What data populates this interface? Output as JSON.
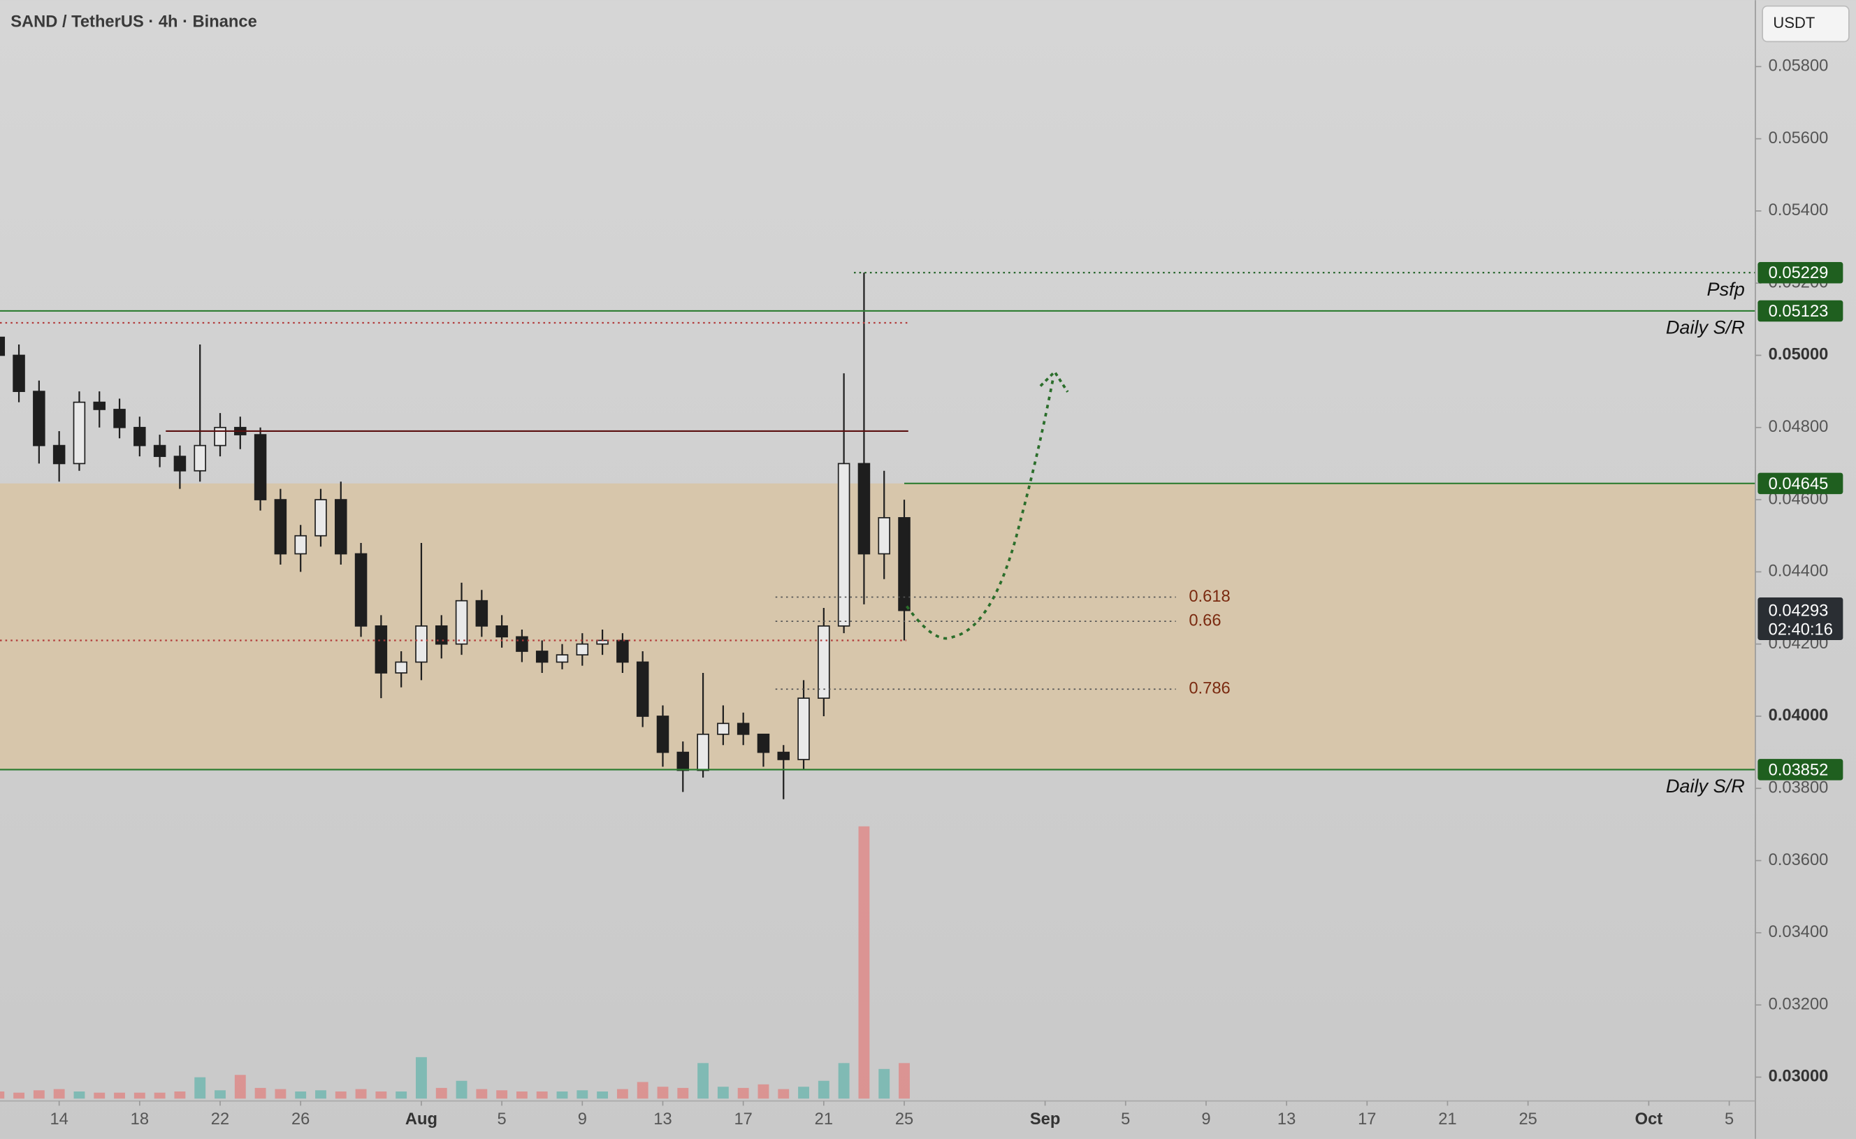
{
  "chart_data": {
    "type": "candlestick",
    "title": "SAND / TetherUS · 4h · Binance",
    "currency": "USDT",
    "x": [
      11,
      12,
      13,
      14,
      15,
      16,
      17,
      18,
      19,
      20,
      21,
      22,
      23,
      24,
      25,
      26,
      27,
      28,
      29,
      30,
      31,
      32,
      33,
      34,
      35,
      36,
      37,
      38,
      39,
      40,
      41,
      42,
      43,
      44,
      45,
      46,
      47,
      48,
      49,
      50,
      51,
      52,
      53,
      54,
      55,
      56
    ],
    "open": [
      0.0505,
      0.05,
      0.049,
      0.0475,
      0.047,
      0.0487,
      0.0485,
      0.048,
      0.0475,
      0.0472,
      0.0468,
      0.0475,
      0.048,
      0.0478,
      0.046,
      0.0445,
      0.045,
      0.046,
      0.0445,
      0.0425,
      0.0412,
      0.0415,
      0.0425,
      0.042,
      0.0432,
      0.0425,
      0.0422,
      0.0418,
      0.0415,
      0.0417,
      0.042,
      0.0421,
      0.0415,
      0.04,
      0.039,
      0.0385,
      0.0395,
      0.0398,
      0.0395,
      0.039,
      0.0388,
      0.0405,
      0.0425,
      0.047,
      0.0445,
      0.0455
    ],
    "high": [
      0.0508,
      0.0503,
      0.0493,
      0.0479,
      0.049,
      0.049,
      0.0488,
      0.0483,
      0.0478,
      0.0475,
      0.0503,
      0.0484,
      0.0483,
      0.048,
      0.0463,
      0.0453,
      0.0463,
      0.0465,
      0.0448,
      0.0428,
      0.0418,
      0.0448,
      0.0428,
      0.0437,
      0.0435,
      0.0428,
      0.0424,
      0.0421,
      0.042,
      0.0423,
      0.0424,
      0.0423,
      0.0418,
      0.0403,
      0.0393,
      0.0412,
      0.0403,
      0.0401,
      0.0395,
      0.0392,
      0.041,
      0.043,
      0.0495,
      0.05229,
      0.0468,
      0.046
    ],
    "low": [
      0.0498,
      0.0487,
      0.047,
      0.0465,
      0.0468,
      0.048,
      0.0477,
      0.0472,
      0.0469,
      0.0463,
      0.0465,
      0.0472,
      0.0474,
      0.0457,
      0.0442,
      0.044,
      0.0447,
      0.0442,
      0.0422,
      0.0405,
      0.0408,
      0.041,
      0.0416,
      0.0417,
      0.0422,
      0.0419,
      0.0415,
      0.0412,
      0.0413,
      0.0414,
      0.0417,
      0.0412,
      0.0397,
      0.0386,
      0.0379,
      0.0383,
      0.0392,
      0.0392,
      0.0386,
      0.0377,
      0.0385,
      0.04,
      0.0423,
      0.0431,
      0.0438,
      0.0421
    ],
    "close": [
      0.05,
      0.049,
      0.0475,
      0.047,
      0.0487,
      0.0485,
      0.048,
      0.0475,
      0.0472,
      0.0468,
      0.0475,
      0.048,
      0.0478,
      0.046,
      0.0445,
      0.045,
      0.046,
      0.0445,
      0.0425,
      0.0412,
      0.0415,
      0.0425,
      0.042,
      0.0432,
      0.0425,
      0.0422,
      0.0418,
      0.0415,
      0.0417,
      0.042,
      0.0421,
      0.0415,
      0.04,
      0.039,
      0.0385,
      0.0395,
      0.0398,
      0.0395,
      0.039,
      0.0388,
      0.0405,
      0.0425,
      0.047,
      0.0445,
      0.0455,
      0.04293
    ],
    "volume": [
      6,
      5,
      7,
      8,
      6,
      5,
      5,
      5,
      5,
      6,
      18,
      7,
      20,
      9,
      8,
      6,
      7,
      6,
      8,
      6,
      6,
      35,
      9,
      15,
      8,
      7,
      6,
      6,
      6,
      7,
      6,
      8,
      14,
      10,
      9,
      30,
      10,
      9,
      12,
      8,
      10,
      15,
      30,
      230,
      25,
      30
    ],
    "up_color": "#26a69a",
    "down_color": "#ef5350",
    "candle_color": "#1e1e1e",
    "xlim": [
      11.06,
      98.3
    ],
    "ylim": [
      0.02934,
      0.05984
    ],
    "xticks": [
      14,
      18,
      22,
      26,
      {
        "value": 32,
        "label": "Aug"
      },
      {
        "value": 36,
        "label": "5"
      },
      {
        "value": 40,
        "label": "9"
      },
      {
        "value": 44,
        "label": "13"
      },
      {
        "value": 48,
        "label": "17"
      },
      {
        "value": 52,
        "label": "21"
      },
      {
        "value": 56,
        "label": "25"
      },
      {
        "value": 63,
        "label": "Sep"
      },
      {
        "value": 67,
        "label": "5"
      },
      {
        "value": 71,
        "label": "9"
      },
      {
        "value": 75,
        "label": "13"
      },
      {
        "value": 79,
        "label": "17"
      },
      {
        "value": 83,
        "label": "21"
      },
      {
        "value": 87,
        "label": "25"
      },
      {
        "value": 93,
        "label": "Oct"
      },
      {
        "value": 97,
        "label": "5"
      }
    ],
    "yticks": [
      {
        "value": 0.03,
        "label": "0.03000"
      },
      {
        "value": 0.032,
        "label": "0.03200"
      },
      {
        "value": 0.034,
        "label": "0.03400"
      },
      {
        "value": 0.036,
        "label": "0.03600"
      },
      {
        "value": 0.038,
        "label": "0.03800"
      },
      {
        "value": 0.04,
        "label": "0.04000"
      },
      {
        "value": 0.042,
        "label": "0.04200"
      },
      {
        "value": 0.044,
        "label": "0.04400"
      },
      {
        "value": 0.046,
        "label": "0.04600"
      },
      {
        "value": 0.048,
        "label": "0.04800"
      },
      {
        "value": 0.05,
        "label": "0.05000"
      },
      {
        "value": 0.052,
        "label": "0.05200"
      },
      {
        "value": 0.054,
        "label": "0.05400"
      },
      {
        "value": 0.056,
        "label": "0.05600"
      },
      {
        "value": 0.058,
        "label": "0.05800"
      }
    ],
    "zone": {
      "top": 0.04645,
      "bottom": 0.03852,
      "color": "#d8c4a4"
    },
    "levels": [
      {
        "value": 0.05229,
        "label": "Psfp",
        "color": "#1b5e20",
        "style": "dotted",
        "from_x": 53.5
      },
      {
        "value": 0.05123,
        "label": "Daily S/R",
        "color": "#2e7d32",
        "style": "solid",
        "from_x": 11.06
      },
      {
        "value": 0.04645,
        "color": "#2e7d32",
        "style": "solid",
        "from_x": 56
      },
      {
        "value": 0.03852,
        "label": "Daily S/R",
        "color": "#2e7d32",
        "style": "solid",
        "from_x": 11.06
      }
    ],
    "lines": [
      {
        "value": 0.0509,
        "color": "#b23a3a",
        "style": "dotted",
        "from_x": 11.06,
        "to_x": 56.2
      },
      {
        "value": 0.0479,
        "color": "#5a1010",
        "style": "solid",
        "from_x": 19.3,
        "to_x": 56.2
      },
      {
        "value": 0.0421,
        "color": "#b23a3a",
        "style": "dotted",
        "from_x": 11.06,
        "to_x": 56.1
      }
    ],
    "fib": [
      {
        "ratio": 0.618,
        "value": 0.0433
      },
      {
        "ratio": 0.66,
        "value": 0.04263
      },
      {
        "ratio": 0.786,
        "value": 0.04075
      }
    ],
    "fib_from_x": 49.6,
    "fib_to_x": 69.5,
    "fib_color": "#7a2a10",
    "last_price": 0.04293,
    "countdown": "02:40:16"
  }
}
